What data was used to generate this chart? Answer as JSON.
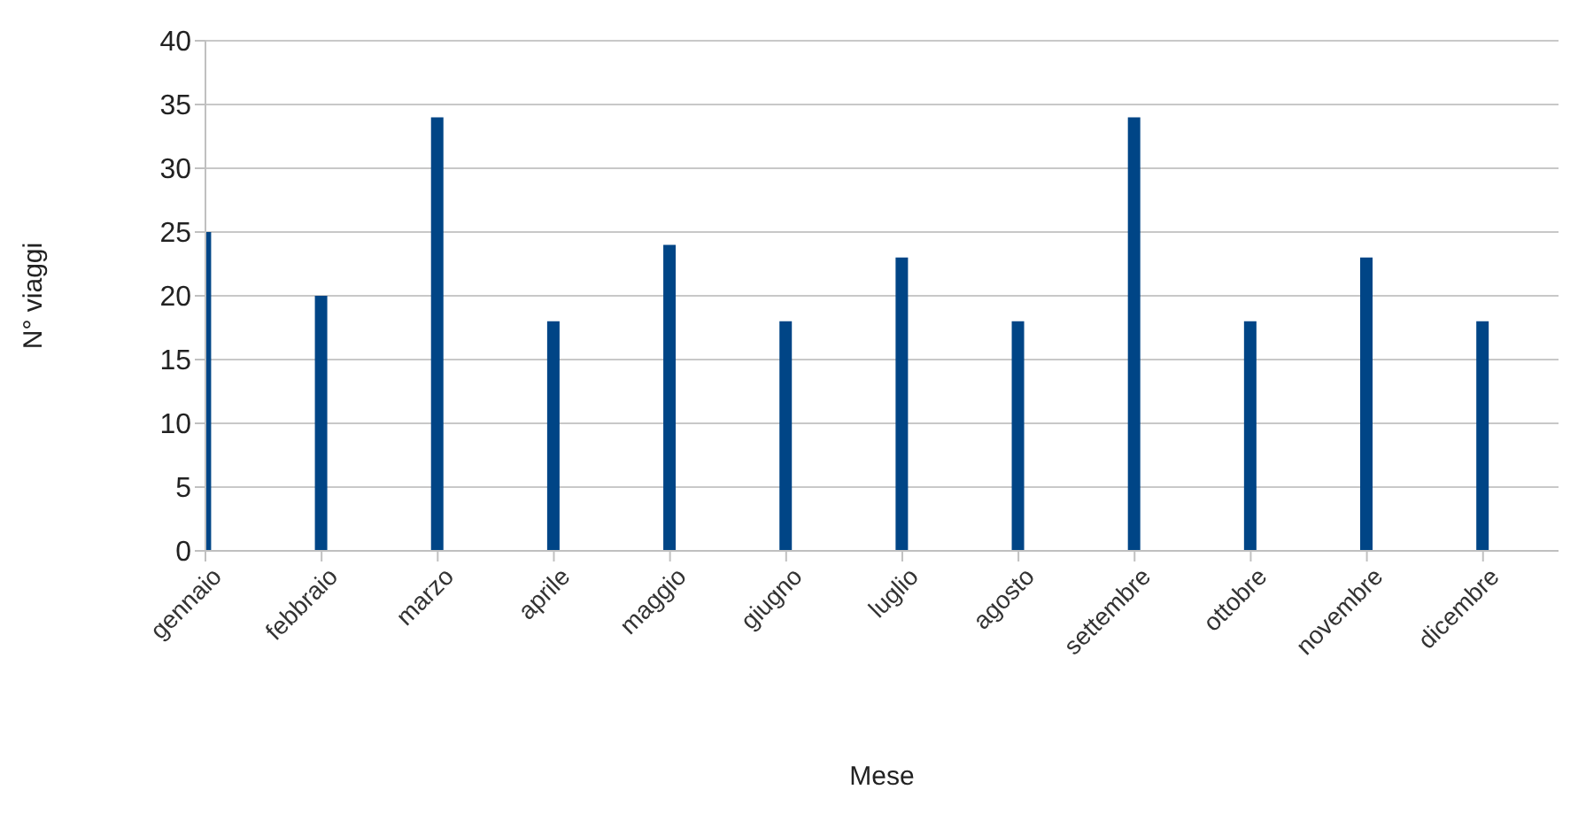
{
  "chart_data": {
    "type": "bar",
    "xlabel": "Mese",
    "ylabel": "N° viaggi",
    "categories": [
      "gennaio",
      "febbraio",
      "marzo",
      "aprile",
      "maggio",
      "giugno",
      "luglio",
      "agosto",
      "settembre",
      "ottobre",
      "novembre",
      "dicembre"
    ],
    "values": [
      25,
      20,
      34,
      18,
      24,
      18,
      23,
      18,
      34,
      18,
      23,
      18
    ],
    "color": "#004586",
    "ylim": [
      0,
      40
    ],
    "yticks": [
      0,
      5,
      10,
      15,
      20,
      25,
      30,
      35,
      40
    ],
    "grid": "y"
  }
}
